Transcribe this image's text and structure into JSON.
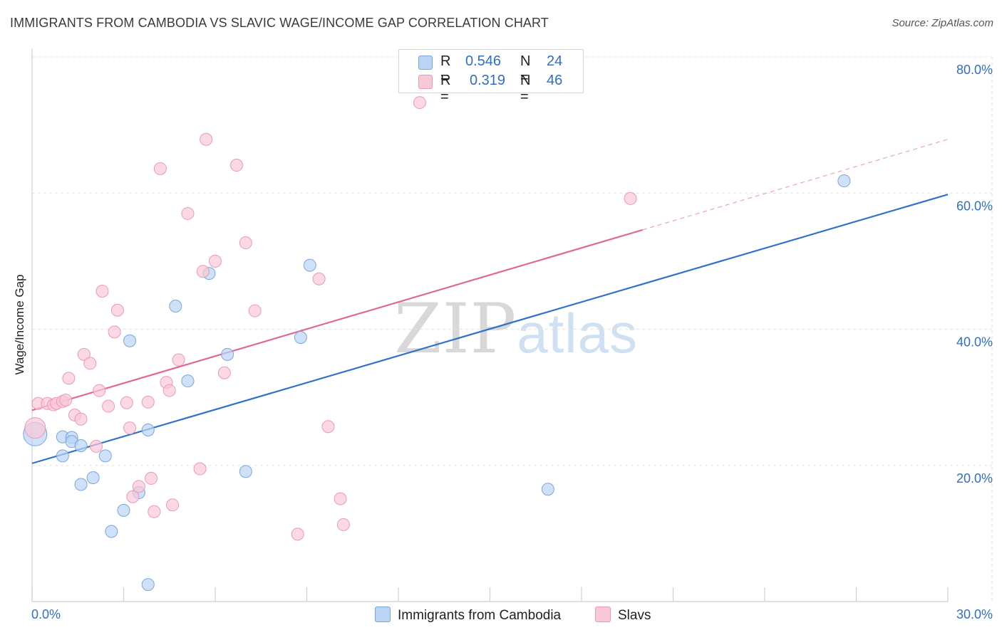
{
  "header": {
    "title": "IMMIGRANTS FROM CAMBODIA VS SLAVIC WAGE/INCOME GAP CORRELATION CHART",
    "source": "Source: ZipAtlas.com"
  },
  "watermark": {
    "zip": "ZIP",
    "atlas": "atlas"
  },
  "legend_top": [
    {
      "r_label": "R = ",
      "r_value": "0.546",
      "n_label": "N = ",
      "n_value": "24"
    },
    {
      "r_label": "R = ",
      "r_value": "0.319",
      "n_label": "N = ",
      "n_value": "46"
    }
  ],
  "legend_bottom": [
    {
      "label": "Immigrants from Cambodia"
    },
    {
      "label": "Slavs"
    }
  ],
  "colors": {
    "cambodia_fill": "#b9d4f5",
    "cambodia_stroke": "#7aa6dd",
    "cambodia_line": "#2f72c8",
    "slavs_fill": "#f9c8d7",
    "slavs_stroke": "#eb9ab4",
    "slavs_line": "#e2678f",
    "axis_text": "#2f6fc9"
  },
  "chart_data": {
    "type": "scatter",
    "title": "IMMIGRANTS FROM CAMBODIA VS SLAVIC WAGE/INCOME GAP CORRELATION CHART",
    "xlabel": "",
    "ylabel": "Wage/Income Gap",
    "xlim": [
      0,
      30
    ],
    "ylim": [
      0,
      80
    ],
    "x_tick_labels": [
      "0.0%",
      "30.0%"
    ],
    "y_ticks": [
      20,
      40,
      60,
      80
    ],
    "y_tick_labels": [
      "20.0%",
      "40.0%",
      "60.0%",
      "80.0%"
    ],
    "grid": true,
    "series": [
      {
        "name": "Immigrants from Cambodia",
        "r": 0.546,
        "n": 24,
        "trend": {
          "x0": 0,
          "y0": 20.3,
          "x1": 30,
          "y1": 59.8,
          "dashed_to_x": null
        },
        "points": [
          [
            0.1,
            24.6,
            16
          ],
          [
            1.0,
            24.2,
            8
          ],
          [
            1.3,
            24.1,
            8
          ],
          [
            1.0,
            21.4,
            8
          ],
          [
            1.3,
            23.5,
            8
          ],
          [
            1.6,
            22.9,
            8
          ],
          [
            1.6,
            17.2,
            8
          ],
          [
            2.0,
            18.2,
            8
          ],
          [
            2.4,
            21.4,
            8
          ],
          [
            2.6,
            10.3,
            8
          ],
          [
            3.0,
            13.4,
            8
          ],
          [
            3.2,
            38.3,
            8
          ],
          [
            3.5,
            16.0,
            8
          ],
          [
            3.8,
            25.2,
            8
          ],
          [
            3.8,
            2.5,
            8
          ],
          [
            4.7,
            43.4,
            8
          ],
          [
            5.1,
            32.4,
            8
          ],
          [
            5.8,
            48.2,
            8
          ],
          [
            6.4,
            36.3,
            8
          ],
          [
            7.0,
            19.1,
            8
          ],
          [
            8.8,
            38.8,
            8
          ],
          [
            9.1,
            49.4,
            8
          ],
          [
            16.9,
            16.5,
            8
          ],
          [
            26.6,
            61.8,
            8
          ]
        ]
      },
      {
        "name": "Slavs",
        "r": 0.319,
        "n": 46,
        "trend": {
          "x0": 0,
          "y0": 28.1,
          "x1": 20.0,
          "y1": 54.6,
          "dashed_to_x": 30,
          "dashed_to_y": 67.9
        },
        "points": [
          [
            0.1,
            25.5,
            14
          ],
          [
            0.2,
            29.1,
            8
          ],
          [
            0.5,
            29.1,
            8
          ],
          [
            0.7,
            28.9,
            8
          ],
          [
            0.8,
            29.1,
            8
          ],
          [
            1.0,
            29.4,
            8
          ],
          [
            1.1,
            29.6,
            8
          ],
          [
            1.2,
            32.8,
            8
          ],
          [
            1.4,
            27.4,
            8
          ],
          [
            1.6,
            26.8,
            8
          ],
          [
            1.7,
            36.3,
            8
          ],
          [
            1.9,
            35.0,
            8
          ],
          [
            2.1,
            22.8,
            8
          ],
          [
            2.2,
            31.0,
            8
          ],
          [
            2.3,
            45.6,
            8
          ],
          [
            2.5,
            28.7,
            8
          ],
          [
            2.7,
            39.6,
            8
          ],
          [
            2.8,
            42.8,
            8
          ],
          [
            3.1,
            29.2,
            8
          ],
          [
            3.2,
            25.5,
            8
          ],
          [
            3.3,
            15.4,
            8
          ],
          [
            3.5,
            16.9,
            8
          ],
          [
            3.8,
            29.3,
            8
          ],
          [
            3.9,
            18.1,
            8
          ],
          [
            4.0,
            13.2,
            8
          ],
          [
            4.2,
            63.6,
            8
          ],
          [
            4.4,
            32.2,
            8
          ],
          [
            4.5,
            31.0,
            8
          ],
          [
            4.6,
            14.2,
            8
          ],
          [
            4.8,
            35.5,
            8
          ],
          [
            5.1,
            57.0,
            8
          ],
          [
            5.5,
            19.5,
            8
          ],
          [
            5.6,
            48.5,
            8
          ],
          [
            5.7,
            67.9,
            8
          ],
          [
            6.0,
            50.0,
            8
          ],
          [
            6.3,
            33.6,
            8
          ],
          [
            6.7,
            64.1,
            8
          ],
          [
            7.0,
            52.7,
            8
          ],
          [
            7.3,
            42.7,
            8
          ],
          [
            8.7,
            9.9,
            8
          ],
          [
            9.4,
            47.4,
            8
          ],
          [
            9.7,
            25.7,
            8
          ],
          [
            10.1,
            15.1,
            8
          ],
          [
            10.2,
            11.3,
            8
          ],
          [
            12.7,
            73.3,
            8
          ],
          [
            19.6,
            59.2,
            8
          ]
        ]
      }
    ]
  }
}
